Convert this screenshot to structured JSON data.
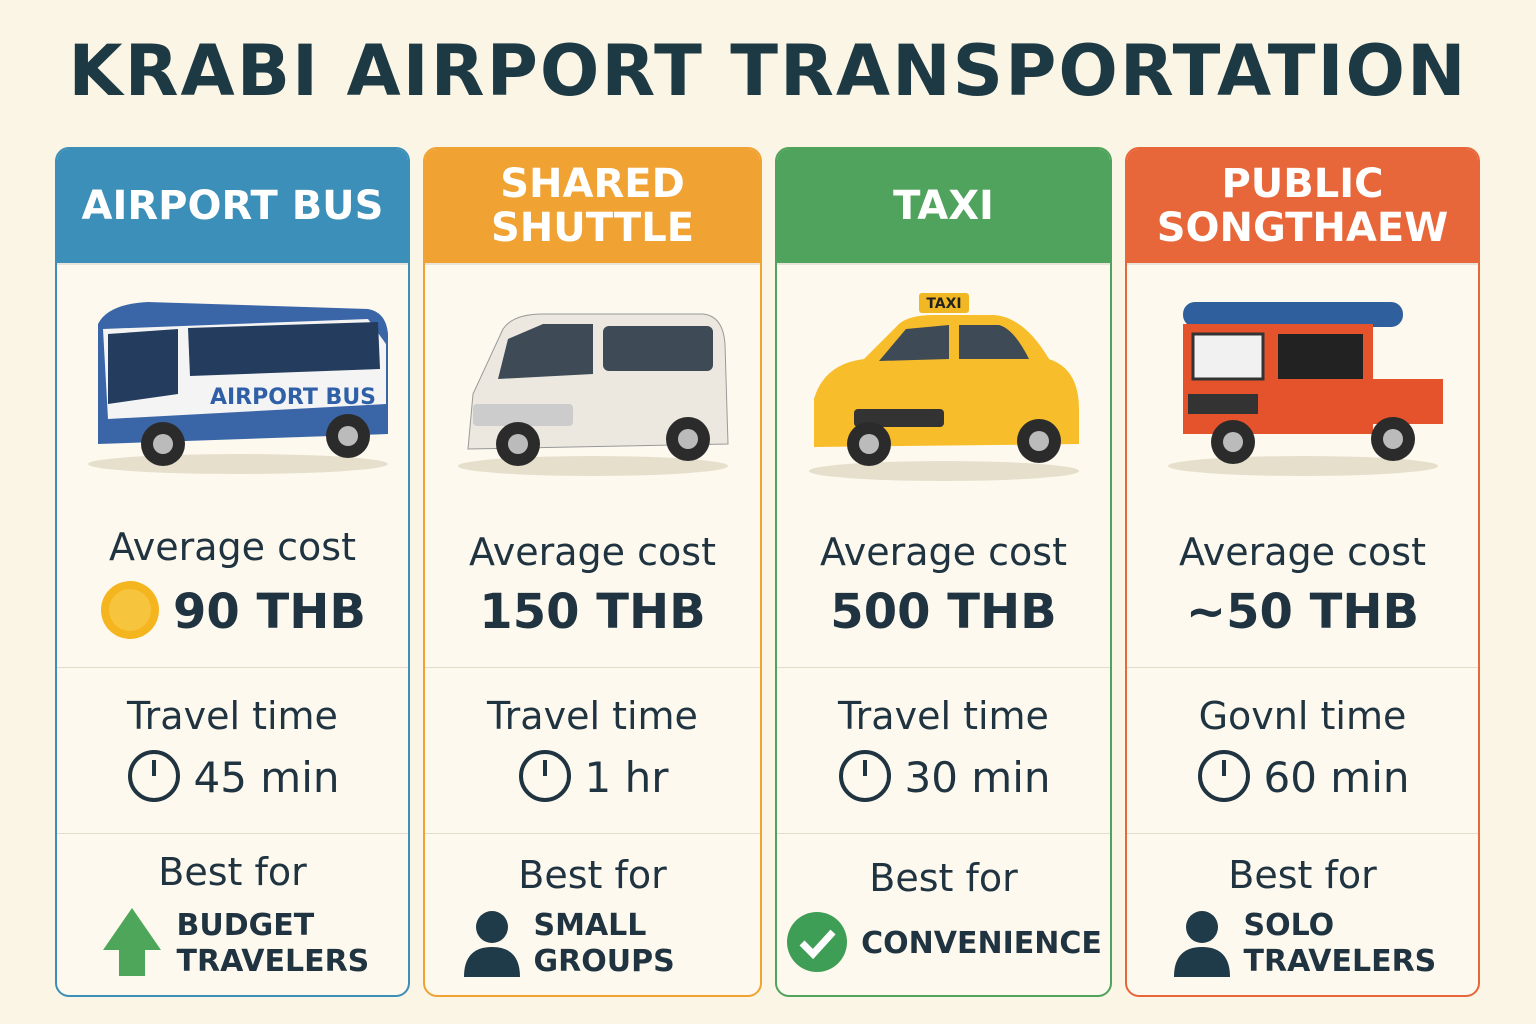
{
  "title": "KRABI AIRPORT TRANSPORTATION",
  "cards": [
    {
      "header": "AIRPORT BUS",
      "color": "#3b8fb8",
      "image_label": "AIRPORT BUS",
      "cost_label": "Average cost",
      "cost": "90 THB",
      "time_label": "Travel time",
      "time": "45 min",
      "best_label": "Best for",
      "best": "BUDGET TRAVELERS"
    },
    {
      "header": "SHARED SHUTTLE",
      "color": "#f0a232",
      "cost_label": "Average cost",
      "cost": "150 THB",
      "time_label": "Travel time",
      "time": "1 hr",
      "best_label": "Best for",
      "best": "SMALL GROUPS"
    },
    {
      "header": "TAXI",
      "color": "#4fa35c",
      "image_label": "TAXI",
      "cost_label": "Average cost",
      "cost": "500 THB",
      "time_label": "Travel time",
      "time": "30 min",
      "best_label": "Best for",
      "best": "CONVENIENCE"
    },
    {
      "header": "PUBLIC SONGTHAEW",
      "color": "#e8673a",
      "cost_label": "Average cost",
      "cost": "~50 THB",
      "time_label": "Govnl time",
      "time": "60 min",
      "best_label": "Best for",
      "best": "SOLO TRAVELERS"
    }
  ]
}
